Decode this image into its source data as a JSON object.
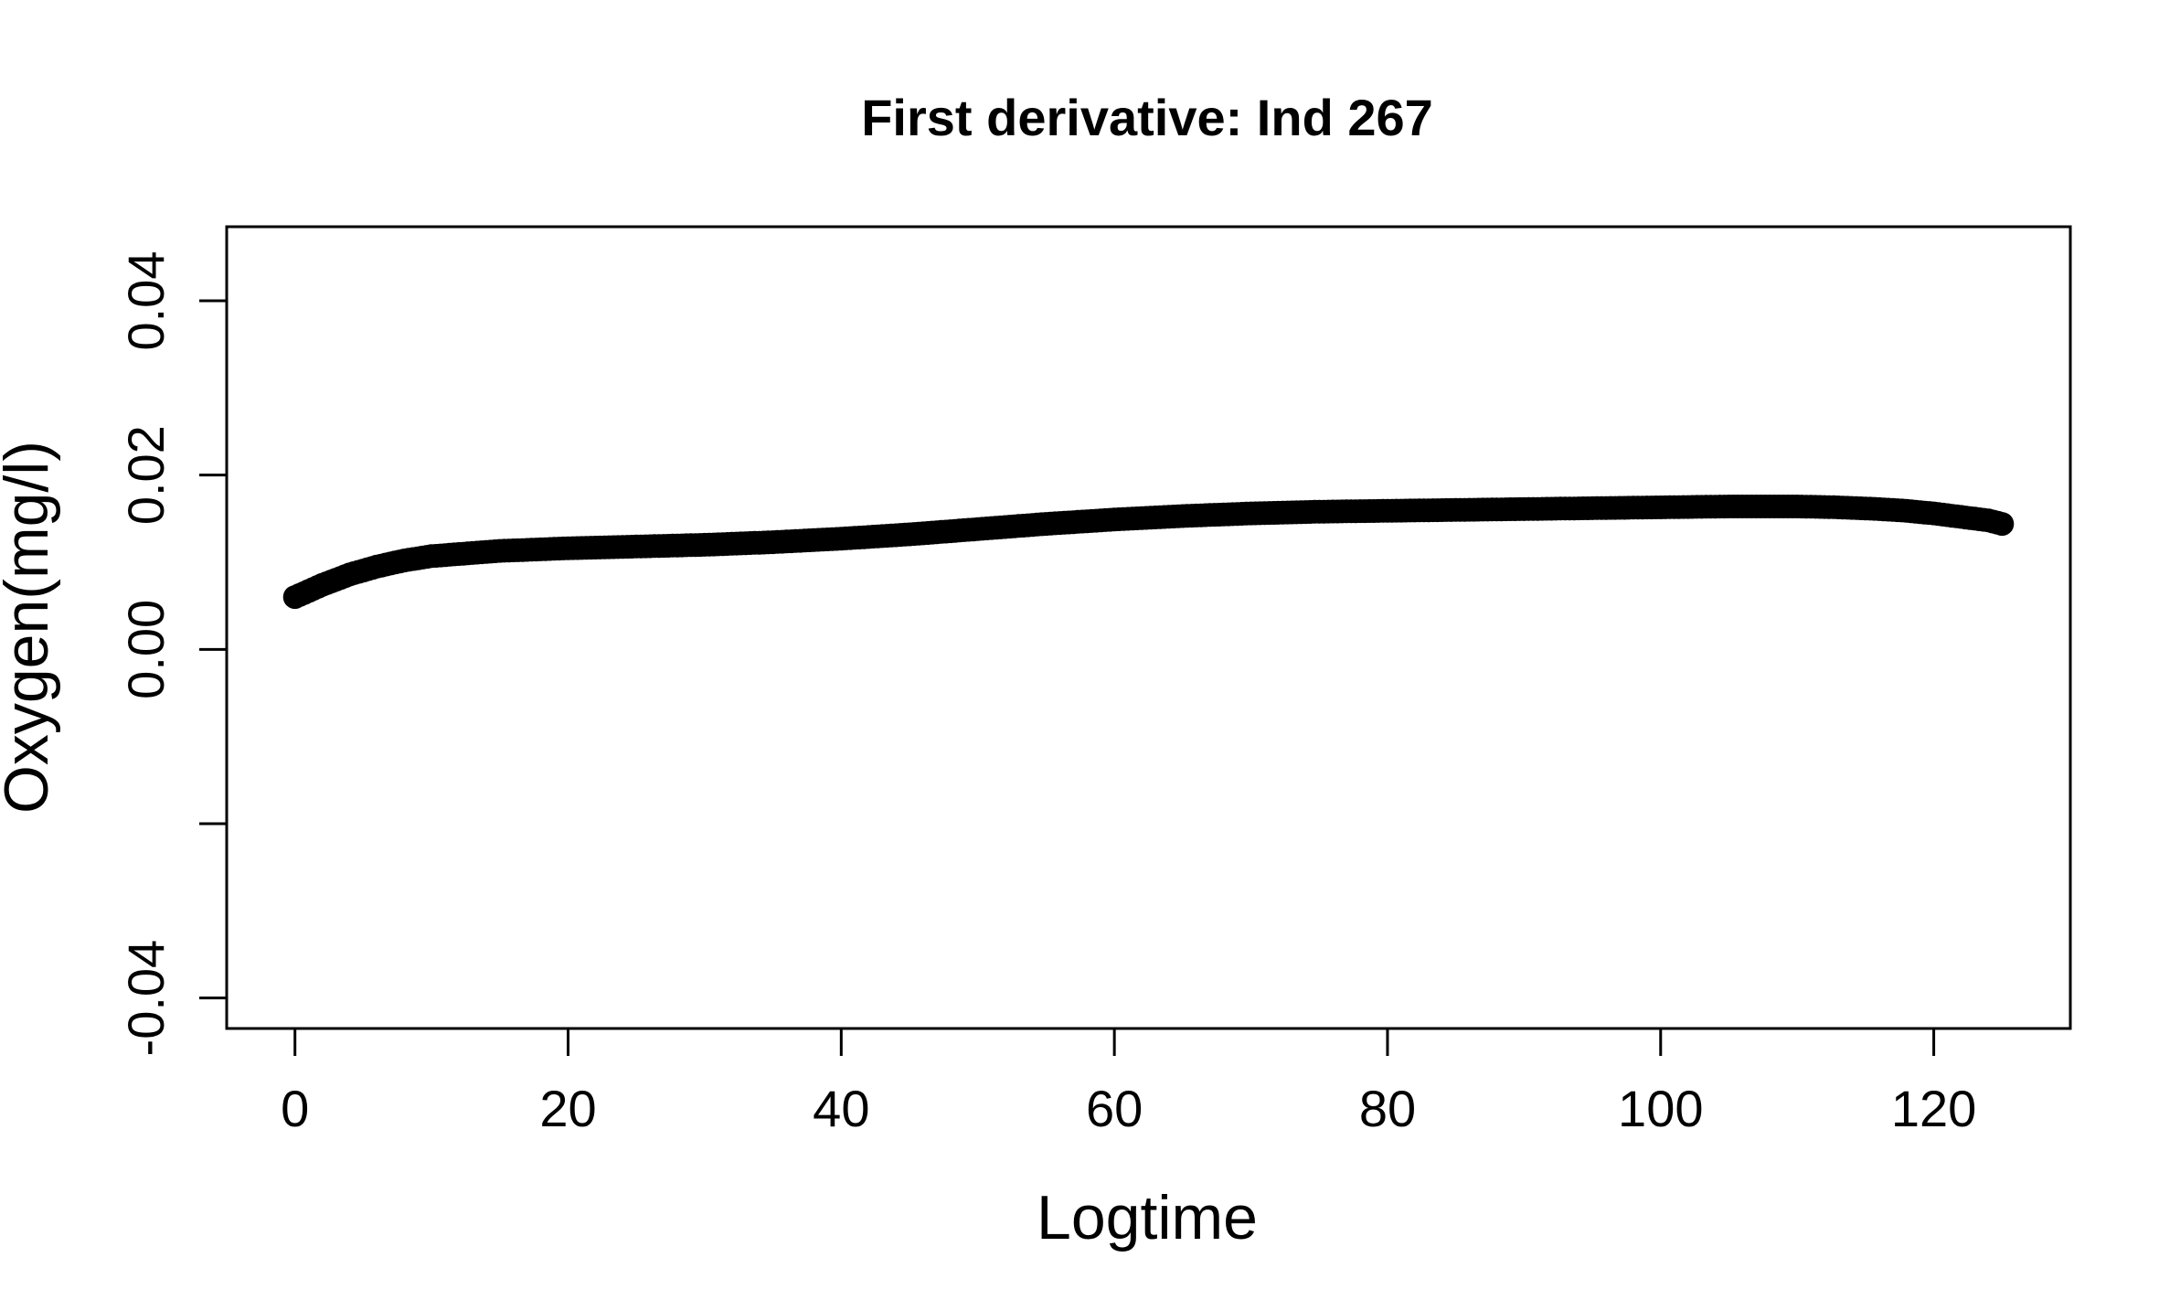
{
  "chart_data": {
    "type": "scatter",
    "title": "First derivative: Ind  267",
    "xlabel": "Logtime",
    "ylabel": "Oxygen(mg/l)",
    "xlim": [
      -5,
      130
    ],
    "ylim": [
      -0.0435,
      0.0485
    ],
    "x_ticks": [
      0,
      20,
      40,
      60,
      80,
      100,
      120
    ],
    "x_tick_labels": [
      "0",
      "20",
      "40",
      "60",
      "80",
      "100",
      "120"
    ],
    "y_ticks": [
      -0.04,
      -0.02,
      0.0,
      0.02,
      0.04
    ],
    "y_tick_labels": [
      "-0.04",
      "",
      "0.00",
      "0.02",
      "0.04"
    ],
    "grid": false,
    "point_color": "#000000",
    "series": [
      {
        "x": [
          0,
          2,
          4,
          6,
          8,
          10,
          15,
          20,
          25,
          30,
          35,
          40,
          45,
          50,
          55,
          60,
          65,
          70,
          75,
          80,
          85,
          90,
          95,
          100,
          105,
          110,
          113,
          116,
          118,
          120,
          122,
          124,
          125
        ],
        "y": [
          0.006,
          0.0074,
          0.0086,
          0.0095,
          0.0102,
          0.0107,
          0.0113,
          0.0116,
          0.0118,
          0.012,
          0.0123,
          0.0127,
          0.0132,
          0.0138,
          0.0144,
          0.0149,
          0.0153,
          0.0156,
          0.0158,
          0.0159,
          0.016,
          0.0161,
          0.0162,
          0.0163,
          0.0164,
          0.0164,
          0.0163,
          0.0161,
          0.0159,
          0.0156,
          0.0152,
          0.0148,
          0.0144
        ]
      }
    ]
  }
}
